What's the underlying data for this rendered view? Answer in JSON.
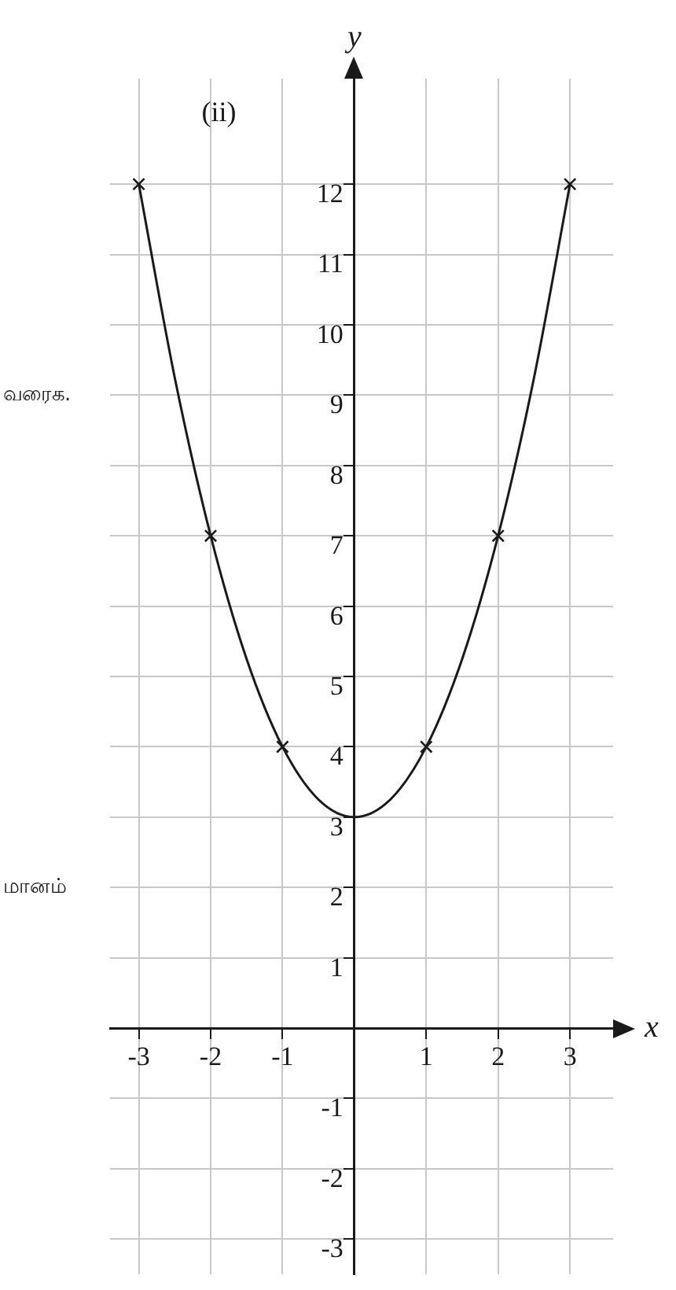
{
  "chart_data": {
    "type": "line",
    "title": "(ii)",
    "xlabel": "x",
    "ylabel": "y",
    "x": [
      -3,
      -2.5,
      -2,
      -1.5,
      -1,
      -0.5,
      0,
      0.5,
      1,
      1.5,
      2,
      2.5,
      3
    ],
    "series": [
      {
        "type": "line",
        "color": "#1a1a1a",
        "values": [
          12,
          9.25,
          7,
          5.25,
          4,
          3.25,
          3,
          3.25,
          4,
          5.25,
          7,
          9.25,
          12
        ],
        "marker": "none"
      },
      {
        "type": "scatter",
        "color": "#1a1a1a",
        "x": [
          -3,
          -2,
          -1,
          1,
          2,
          3
        ],
        "values": [
          12,
          7,
          4,
          4,
          7,
          12
        ],
        "marker": "cross"
      }
    ],
    "xlim": [
      -3.4,
      3.6
    ],
    "ylim": [
      -3.5,
      13.5
    ],
    "xticks": [
      -3,
      -2,
      -1,
      {
        "value": 0,
        "label": null
      },
      1,
      2,
      3
    ],
    "yticks": [
      -3,
      -2,
      -1,
      {
        "value": 0,
        "label": null
      },
      1,
      2,
      3,
      4,
      5,
      6,
      7,
      8,
      9,
      10,
      11,
      12
    ],
    "grid": true,
    "legend": false,
    "annotations": [
      "வரைக.",
      "மானம்"
    ]
  }
}
